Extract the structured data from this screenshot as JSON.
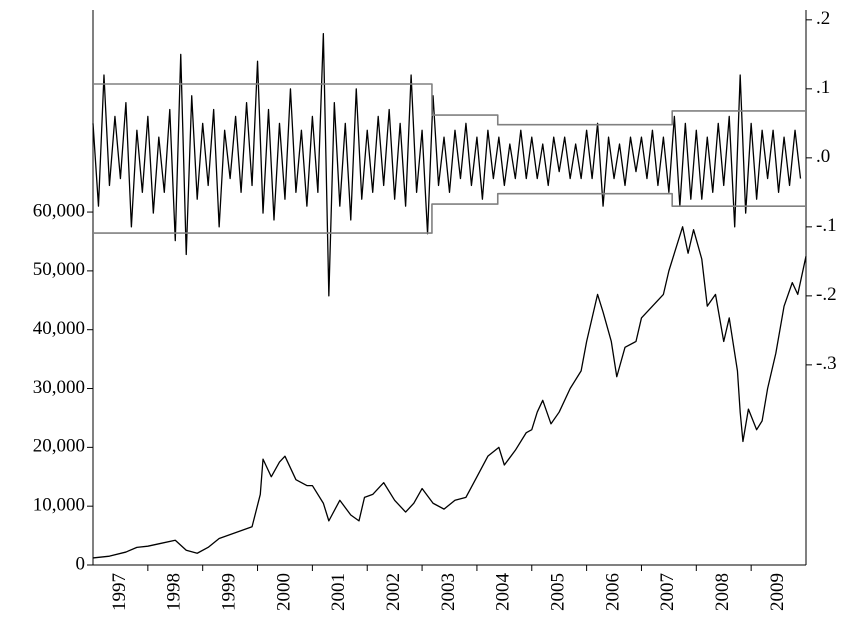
{
  "chart_data": {
    "type": "line",
    "xlim": [
      1997,
      2010
    ],
    "xticks": [
      {
        "value": 1997.5,
        "label": "1997"
      },
      {
        "value": 1998.5,
        "label": "1998"
      },
      {
        "value": 1999.5,
        "label": "1999"
      },
      {
        "value": 2000.5,
        "label": "2000"
      },
      {
        "value": 2001.5,
        "label": "2001"
      },
      {
        "value": 2002.5,
        "label": "2002"
      },
      {
        "value": 2003.5,
        "label": "2003"
      },
      {
        "value": 2004.5,
        "label": "2004"
      },
      {
        "value": 2005.5,
        "label": "2005"
      },
      {
        "value": 2006.5,
        "label": "2006"
      },
      {
        "value": 2007.5,
        "label": "2007"
      },
      {
        "value": 2008.5,
        "label": "2008"
      },
      {
        "value": 2009.5,
        "label": "2009"
      }
    ],
    "xminor": [
      1998,
      1999,
      2000,
      2001,
      2002,
      2003,
      2004,
      2005,
      2006,
      2007,
      2008,
      2009
    ],
    "ylim": [
      0,
      93500
    ],
    "yticks": [
      0,
      {
        "value": 10000,
        "label": "10,000"
      },
      {
        "value": 20000,
        "label": "20,000"
      },
      {
        "value": 30000,
        "label": "30,000"
      },
      {
        "value": 40000,
        "label": "40,000"
      },
      {
        "value": 50000,
        "label": "50,000"
      },
      {
        "value": 60000,
        "label": "60,000"
      }
    ],
    "y2lim": [
      -0.59,
      0.207
    ],
    "y2ticks": [
      {
        "value": 0.2,
        "label": ".2"
      },
      {
        "value": 0.1,
        "label": ".1"
      },
      {
        "value": 0,
        "label": ".0"
      },
      {
        "value": -0.1,
        "label": "-.1"
      },
      {
        "value": -0.2,
        "label": "-.2"
      },
      {
        "value": -0.3,
        "label": "-.3"
      }
    ],
    "series": [
      {
        "color": "#000000",
        "axis": "y",
        "x": [
          1997.0,
          1997.3,
          1997.6,
          1997.8,
          1998.0,
          1998.2,
          1998.5,
          1998.7,
          1998.9,
          1999.1,
          1999.3,
          1999.6,
          1999.9,
          2000.05,
          2000.1,
          2000.25,
          2000.4,
          2000.5,
          2000.7,
          2000.9,
          2001.0,
          2001.2,
          2001.3,
          2001.5,
          2001.7,
          2001.85,
          2001.95,
          2002.1,
          2002.3,
          2002.5,
          2002.7,
          2002.85,
          2003.0,
          2003.2,
          2003.4,
          2003.6,
          2003.8,
          2004.0,
          2004.2,
          2004.4,
          2004.5,
          2004.7,
          2004.9,
          2005.0,
          2005.1,
          2005.2,
          2005.35,
          2005.5,
          2005.7,
          2005.9,
          2006.0,
          2006.2,
          2006.3,
          2006.45,
          2006.55,
          2006.7,
          2006.9,
          2007.0,
          2007.2,
          2007.4,
          2007.5,
          2007.6,
          2007.75,
          2007.85,
          2007.95,
          2008.1,
          2008.2,
          2008.35,
          2008.5,
          2008.6,
          2008.75,
          2008.8,
          2008.85,
          2008.95,
          2009.1,
          2009.2,
          2009.3,
          2009.45,
          2009.6,
          2009.75,
          2009.85,
          2010.0
        ],
        "values": [
          1200,
          1500,
          2200,
          3000,
          3200,
          3600,
          4200,
          2500,
          2000,
          3000,
          4500,
          5500,
          6500,
          12000,
          18000,
          15000,
          17500,
          18500,
          14500,
          13500,
          13500,
          10500,
          7500,
          11000,
          8500,
          7500,
          11500,
          12000,
          14000,
          11000,
          9000,
          10500,
          13000,
          10500,
          9500,
          11000,
          11500,
          15000,
          18500,
          20000,
          17000,
          19500,
          22500,
          23000,
          26000,
          28000,
          24000,
          26000,
          30000,
          33000,
          38000,
          46000,
          43000,
          38000,
          32000,
          37000,
          38000,
          42000,
          44000,
          46000,
          50000,
          53000,
          57500,
          53000,
          57000,
          52000,
          44000,
          46000,
          38000,
          42000,
          33000,
          26000,
          21000,
          26500,
          23000,
          24500,
          30000,
          36000,
          44000,
          48000,
          46000,
          52500
        ]
      },
      {
        "color": "#000000",
        "axis": "y2",
        "x": [
          1997.0,
          1997.1,
          1997.2,
          1997.3,
          1997.4,
          1997.5,
          1997.6,
          1997.7,
          1997.8,
          1997.9,
          1998.0,
          1998.1,
          1998.2,
          1998.3,
          1998.4,
          1998.5,
          1998.6,
          1998.7,
          1998.8,
          1998.9,
          1999.0,
          1999.1,
          1999.2,
          1999.3,
          1999.4,
          1999.5,
          1999.6,
          1999.7,
          1999.8,
          1999.9,
          2000.0,
          2000.1,
          2000.2,
          2000.3,
          2000.4,
          2000.5,
          2000.6,
          2000.7,
          2000.8,
          2000.9,
          2001.0,
          2001.1,
          2001.2,
          2001.3,
          2001.4,
          2001.5,
          2001.6,
          2001.7,
          2001.8,
          2001.9,
          2002.0,
          2002.1,
          2002.2,
          2002.3,
          2002.4,
          2002.5,
          2002.6,
          2002.7,
          2002.8,
          2002.9,
          2003.0,
          2003.1,
          2003.2,
          2003.3,
          2003.4,
          2003.5,
          2003.6,
          2003.7,
          2003.8,
          2003.9,
          2004.0,
          2004.1,
          2004.2,
          2004.3,
          2004.4,
          2004.5,
          2004.6,
          2004.7,
          2004.8,
          2004.9,
          2005.0,
          2005.1,
          2005.2,
          2005.3,
          2005.4,
          2005.5,
          2005.6,
          2005.7,
          2005.8,
          2005.9,
          2006.0,
          2006.1,
          2006.2,
          2006.3,
          2006.4,
          2006.5,
          2006.6,
          2006.7,
          2006.8,
          2006.9,
          2007.0,
          2007.1,
          2007.2,
          2007.3,
          2007.4,
          2007.5,
          2007.6,
          2007.7,
          2007.8,
          2007.9,
          2008.0,
          2008.1,
          2008.2,
          2008.3,
          2008.4,
          2008.5,
          2008.6,
          2008.7,
          2008.8,
          2008.9,
          2009.0,
          2009.1,
          2009.2,
          2009.3,
          2009.4,
          2009.5,
          2009.6,
          2009.7,
          2009.8,
          2009.9
        ],
        "values": [
          0.05,
          -0.07,
          0.12,
          -0.04,
          0.06,
          -0.03,
          0.08,
          -0.1,
          0.04,
          -0.05,
          0.06,
          -0.08,
          0.03,
          -0.05,
          0.07,
          -0.12,
          0.15,
          -0.14,
          0.09,
          -0.06,
          0.05,
          -0.04,
          0.07,
          -0.1,
          0.04,
          -0.03,
          0.06,
          -0.05,
          0.08,
          -0.04,
          0.14,
          -0.08,
          0.07,
          -0.09,
          0.05,
          -0.06,
          0.1,
          -0.05,
          0.04,
          -0.07,
          0.06,
          -0.05,
          0.18,
          -0.2,
          0.08,
          -0.07,
          0.05,
          -0.09,
          0.1,
          -0.06,
          0.04,
          -0.05,
          0.06,
          -0.04,
          0.07,
          -0.06,
          0.05,
          -0.07,
          0.12,
          -0.05,
          0.04,
          -0.11,
          0.09,
          -0.04,
          0.03,
          -0.05,
          0.04,
          -0.03,
          0.05,
          -0.04,
          0.03,
          -0.06,
          0.04,
          -0.03,
          0.03,
          -0.04,
          0.02,
          -0.03,
          0.04,
          -0.03,
          0.03,
          -0.03,
          0.02,
          -0.04,
          0.03,
          -0.02,
          0.03,
          -0.03,
          0.02,
          -0.03,
          0.04,
          -0.03,
          0.05,
          -0.07,
          0.03,
          -0.03,
          0.02,
          -0.04,
          0.03,
          -0.02,
          0.03,
          -0.03,
          0.04,
          -0.04,
          0.03,
          -0.05,
          0.06,
          -0.07,
          0.05,
          -0.06,
          0.04,
          -0.06,
          0.03,
          -0.05,
          0.05,
          -0.04,
          0.06,
          -0.1,
          0.12,
          -0.08,
          0.05,
          -0.06,
          0.04,
          -0.03,
          0.04,
          -0.05,
          0.03,
          -0.04,
          0.04,
          -0.03
        ]
      },
      {
        "color": "#808080",
        "axis": "y2",
        "x": [
          1997,
          2003.18,
          2003.18,
          2004.38,
          2004.38,
          2007.56,
          2007.56,
          2010
        ],
        "values": [
          0.107,
          0.107,
          0.062,
          0.062,
          0.048,
          0.048,
          0.068,
          0.068
        ]
      },
      {
        "color": "#808080",
        "axis": "y2",
        "x": [
          1997,
          2003.18,
          2003.18,
          2004.38,
          2004.38,
          2007.56,
          2007.56,
          2010
        ],
        "values": [
          -0.109,
          -0.109,
          -0.067,
          -0.067,
          -0.052,
          -0.052,
          -0.07,
          -0.07
        ]
      }
    ]
  }
}
